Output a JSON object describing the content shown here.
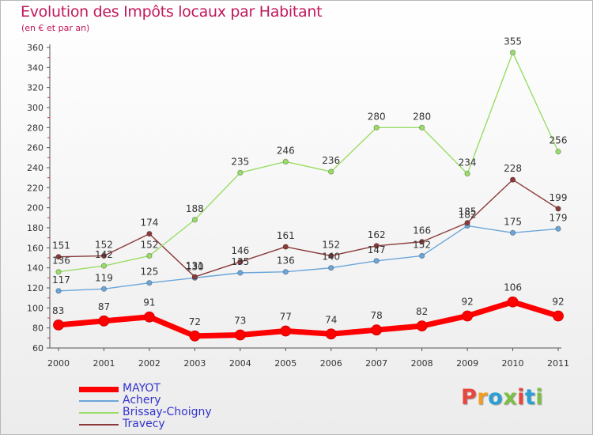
{
  "header": {
    "title": "Evolution des Impôts locaux par Habitant",
    "subtitle": "(en € et par an)"
  },
  "logo": {
    "text": "Proxiti",
    "colors": [
      "#e8453c",
      "#f59c1a",
      "#2a9fd6",
      "#7bc043",
      "#e8453c",
      "#2a9fd6",
      "#7bc043"
    ]
  },
  "chart_data": {
    "type": "line",
    "title": "Evolution des Impôts locaux par Habitant",
    "subtitle": "(en € et par an)",
    "x": [
      "2000",
      "2001",
      "2002",
      "2003",
      "2004",
      "2005",
      "2006",
      "2007",
      "2008",
      "2009",
      "2010",
      "2011"
    ],
    "ylim": [
      60,
      360
    ],
    "yticks": [
      60,
      80,
      100,
      120,
      140,
      160,
      180,
      200,
      220,
      240,
      260,
      280,
      300,
      320,
      340,
      360
    ],
    "grid": false,
    "legend_position": "bottom-left",
    "series": [
      {
        "name": "MAYOT",
        "color": "#ff0000",
        "values": [
          83,
          87,
          91,
          72,
          73,
          77,
          74,
          78,
          82,
          92,
          106,
          92
        ]
      },
      {
        "name": "Achery",
        "color": "#6aa6da",
        "values": [
          117,
          119,
          125,
          130,
          135,
          136,
          140,
          147,
          152,
          182,
          175,
          179
        ]
      },
      {
        "name": "Brissay-Choigny",
        "color": "#99dd66",
        "values": [
          136,
          142,
          152,
          188,
          235,
          246,
          236,
          280,
          280,
          234,
          355,
          256
        ]
      },
      {
        "name": "Travecy",
        "color": "#8b3a3a",
        "values": [
          151,
          152,
          174,
          131,
          146,
          161,
          152,
          162,
          166,
          185,
          228,
          199
        ]
      }
    ],
    "labels": {
      "MAYOT": [
        "83",
        "87",
        "91",
        "72",
        "73",
        "77",
        "74",
        "78",
        "82",
        "92",
        "106",
        "92"
      ],
      "Achery": [
        "117",
        "119",
        "125",
        "130",
        "135",
        "136",
        "140",
        "147",
        "152",
        "182",
        "175",
        "179"
      ],
      "Brissay-Choigny": [
        "136",
        "142",
        "152",
        "188",
        "235",
        "246",
        "236",
        "280",
        "280",
        "234",
        "355",
        "256"
      ],
      "Travecy": [
        "151",
        "152",
        "174",
        "131",
        "146",
        "161",
        "152",
        "162",
        "166",
        "185",
        "228",
        "199"
      ]
    }
  }
}
